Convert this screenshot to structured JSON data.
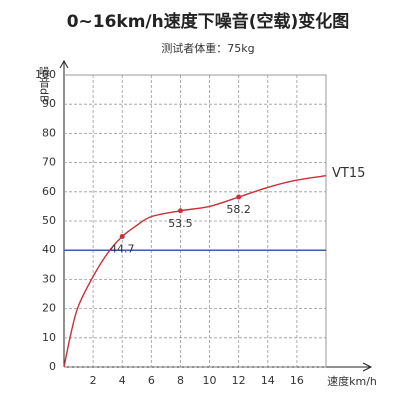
{
  "chart_data": {
    "type": "line",
    "title": "0~16km/h速度下噪音(空载)变化图",
    "subtitle": "测试者体重：75kg",
    "ylabel": "噪音dB",
    "xlabel": "速度km/h",
    "x": [
      0,
      0.5,
      1,
      2,
      3,
      4,
      5,
      6,
      8,
      10,
      12,
      14,
      16,
      18
    ],
    "series": [
      {
        "name": "VT15",
        "color": "#c8323a",
        "values": [
          0,
          12,
          21,
          31,
          39,
          44.7,
          48.5,
          51.5,
          53.5,
          55,
          58.2,
          61.5,
          64,
          65.5
        ]
      }
    ],
    "annotations": [
      {
        "x": 4,
        "y": 44.7
      },
      {
        "x": 8,
        "y": 53.5
      },
      {
        "x": 12,
        "y": 58.2
      }
    ],
    "reference_line": {
      "y": 40,
      "color": "#3a5fa8"
    },
    "xlim": [
      0,
      18
    ],
    "ylim": [
      0,
      100
    ],
    "xticks": [
      2,
      4,
      6,
      8,
      10,
      12,
      14,
      16
    ],
    "yticks": [
      0,
      10,
      20,
      30,
      40,
      50,
      60,
      70,
      80,
      90,
      100
    ],
    "grid": true
  }
}
